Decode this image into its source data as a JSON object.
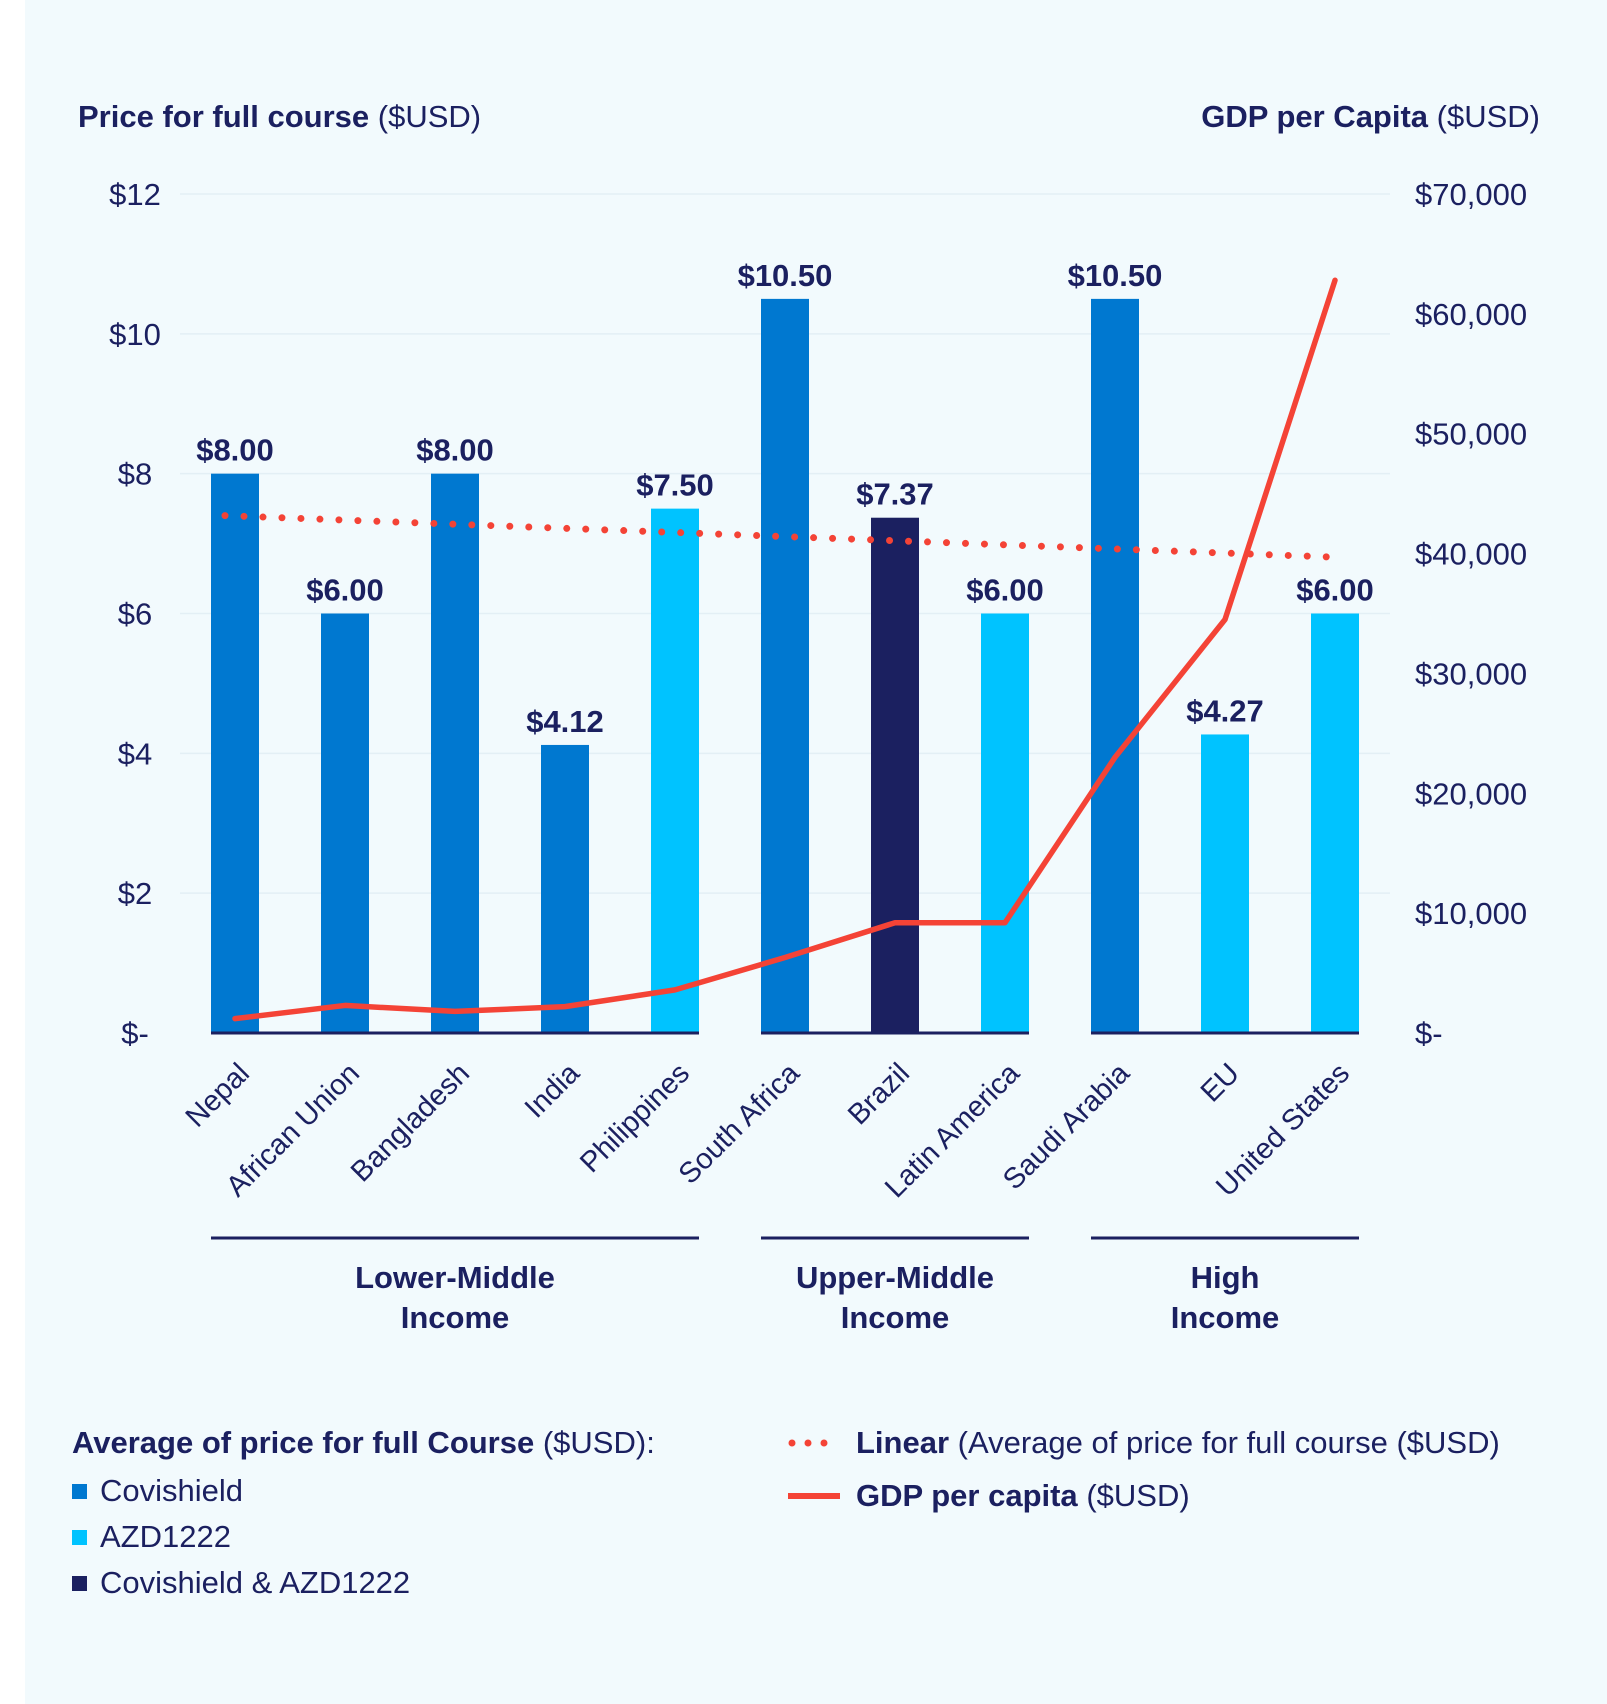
{
  "chart_data": {
    "type": "bar+line",
    "y_left_title": "Price for full course",
    "y_left_unit": "($USD)",
    "y_right_title": "GDP per Capita",
    "y_right_unit": "($USD)",
    "y_left_range": [
      0,
      12
    ],
    "y_right_range": [
      0,
      70000
    ],
    "y_left_ticks": [
      "$-",
      "$2",
      "$4",
      "$6",
      "$8",
      "$10",
      "$12"
    ],
    "y_right_ticks": [
      "$-",
      "$10,000",
      "$20,000",
      "$30,000",
      "$40,000",
      "$50,000",
      "$60,000",
      "$70,000"
    ],
    "categories": [
      "Nepal",
      "African Union",
      "Bangladesh",
      "India",
      "Philippines",
      "South Africa",
      "Brazil",
      "Latin America",
      "Saudi Arabia",
      "EU",
      "United States"
    ],
    "prices": [
      8.0,
      6.0,
      8.0,
      4.12,
      7.5,
      10.5,
      7.37,
      6.0,
      10.5,
      4.27,
      6.0
    ],
    "price_labels": [
      "$8.00",
      "$6.00",
      "$8.00",
      "$4.12",
      "$7.50",
      "$10.50",
      "$7.37",
      "$6.00",
      "$10.50",
      "$4.27",
      "$6.00"
    ],
    "vaccine": [
      "Covishield",
      "Covishield",
      "Covishield",
      "Covishield",
      "AZD1222",
      "Covishield",
      "Covishield & AZD1222",
      "AZD1222",
      "Covishield",
      "AZD1222",
      "AZD1222"
    ],
    "gdp_per_capita": [
      1200,
      2300,
      1800,
      2200,
      3600,
      6300,
      9200,
      9200,
      23000,
      34500,
      62800
    ],
    "linear_trend": {
      "start": 7.4,
      "end": 6.8
    },
    "income_groups": [
      {
        "name": "Lower-Middle Income",
        "line1": "Lower-Middle",
        "line2": "Income",
        "first": 0,
        "last": 4
      },
      {
        "name": "Upper-Middle Income",
        "line1": "Upper-Middle",
        "line2": "Income",
        "first": 5,
        "last": 7
      },
      {
        "name": "High Income",
        "line1": "High",
        "line2": "Income",
        "first": 8,
        "last": 10
      }
    ],
    "colors": {
      "Covishield": "#0078d0",
      "AZD1222": "#00c3ff",
      "Covishield & AZD1222": "#1b2060",
      "gdp": "#f44336",
      "text": "#1b2060",
      "grid": "#e3eff5"
    }
  },
  "legend": {
    "average_title": "Average of price for full Course",
    "average_unit": "($USD):",
    "items": [
      "Covishield",
      "AZD1222",
      "Covishield & AZD1222"
    ],
    "linear_label": "Linear",
    "linear_desc": "(Average of price for full course ($USD)",
    "gdp_label": "GDP per capita",
    "gdp_unit": "($USD)"
  }
}
